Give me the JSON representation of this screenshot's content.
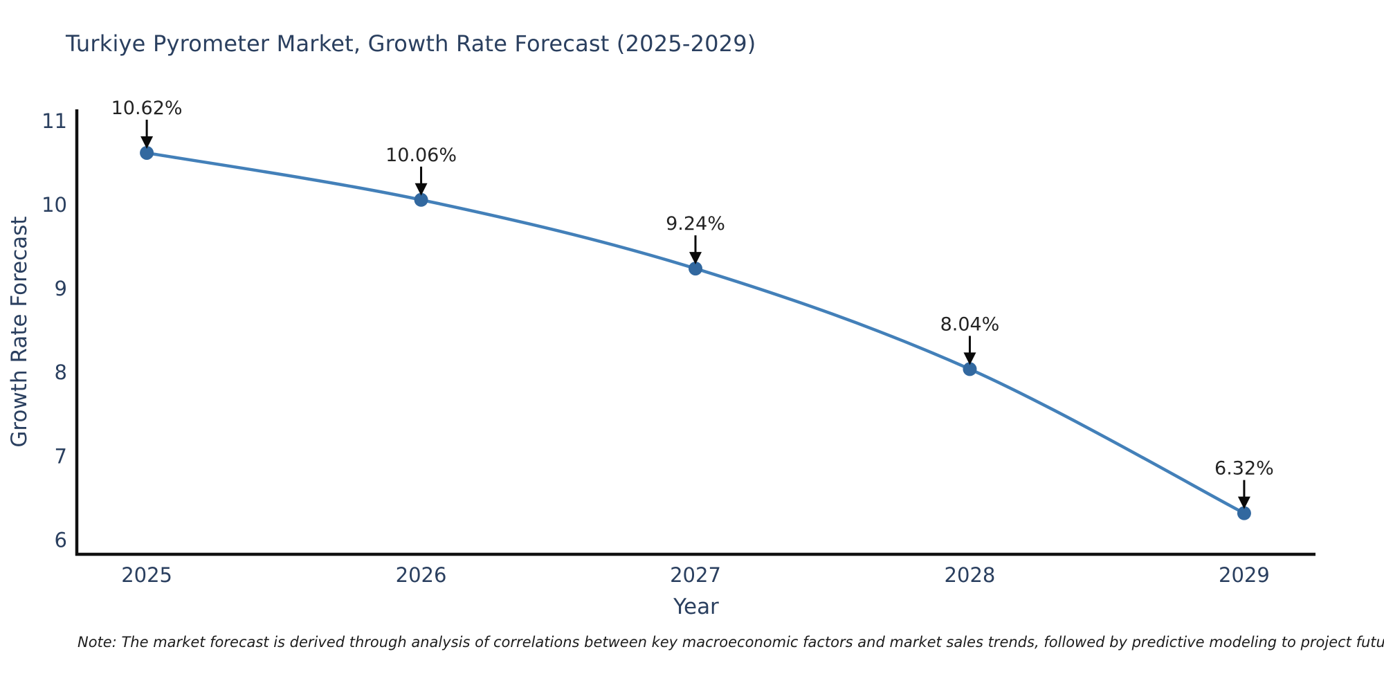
{
  "title": "Turkiye Pyrometer Market, Growth Rate Forecast (2025-2029)",
  "note": "Note: The market forecast is derived through analysis of correlations between key macroeconomic factors and market sales trends, followed by predictive modeling to project future sales",
  "chart_data": {
    "type": "line",
    "line_shape": "spline",
    "title": "Turkiye Pyrometer Market, Growth Rate Forecast (2025-2029)",
    "xlabel": "Year",
    "ylabel": "Growth Rate Forecast",
    "x": [
      2025,
      2026,
      2027,
      2028,
      2029
    ],
    "values": [
      10.62,
      10.06,
      9.24,
      8.04,
      6.32
    ],
    "point_labels": [
      "10.62%",
      "10.06%",
      "9.24%",
      "8.04%",
      "6.32%"
    ],
    "xticks": [
      "2025",
      "2026",
      "2027",
      "2028",
      "2029"
    ],
    "yticks": [
      6,
      7,
      8,
      9,
      10,
      11
    ],
    "xlim": [
      2024.745,
      2029.26
    ],
    "ylim": [
      5.83,
      11.14
    ],
    "grid": false,
    "legend": "none",
    "colors": {
      "line": "#4380b9",
      "marker": "#32689f",
      "axis": "#111111",
      "tick_text": "#2a3f5f",
      "annotation_text": "#232323",
      "arrow": "#0a0a0a"
    }
  }
}
